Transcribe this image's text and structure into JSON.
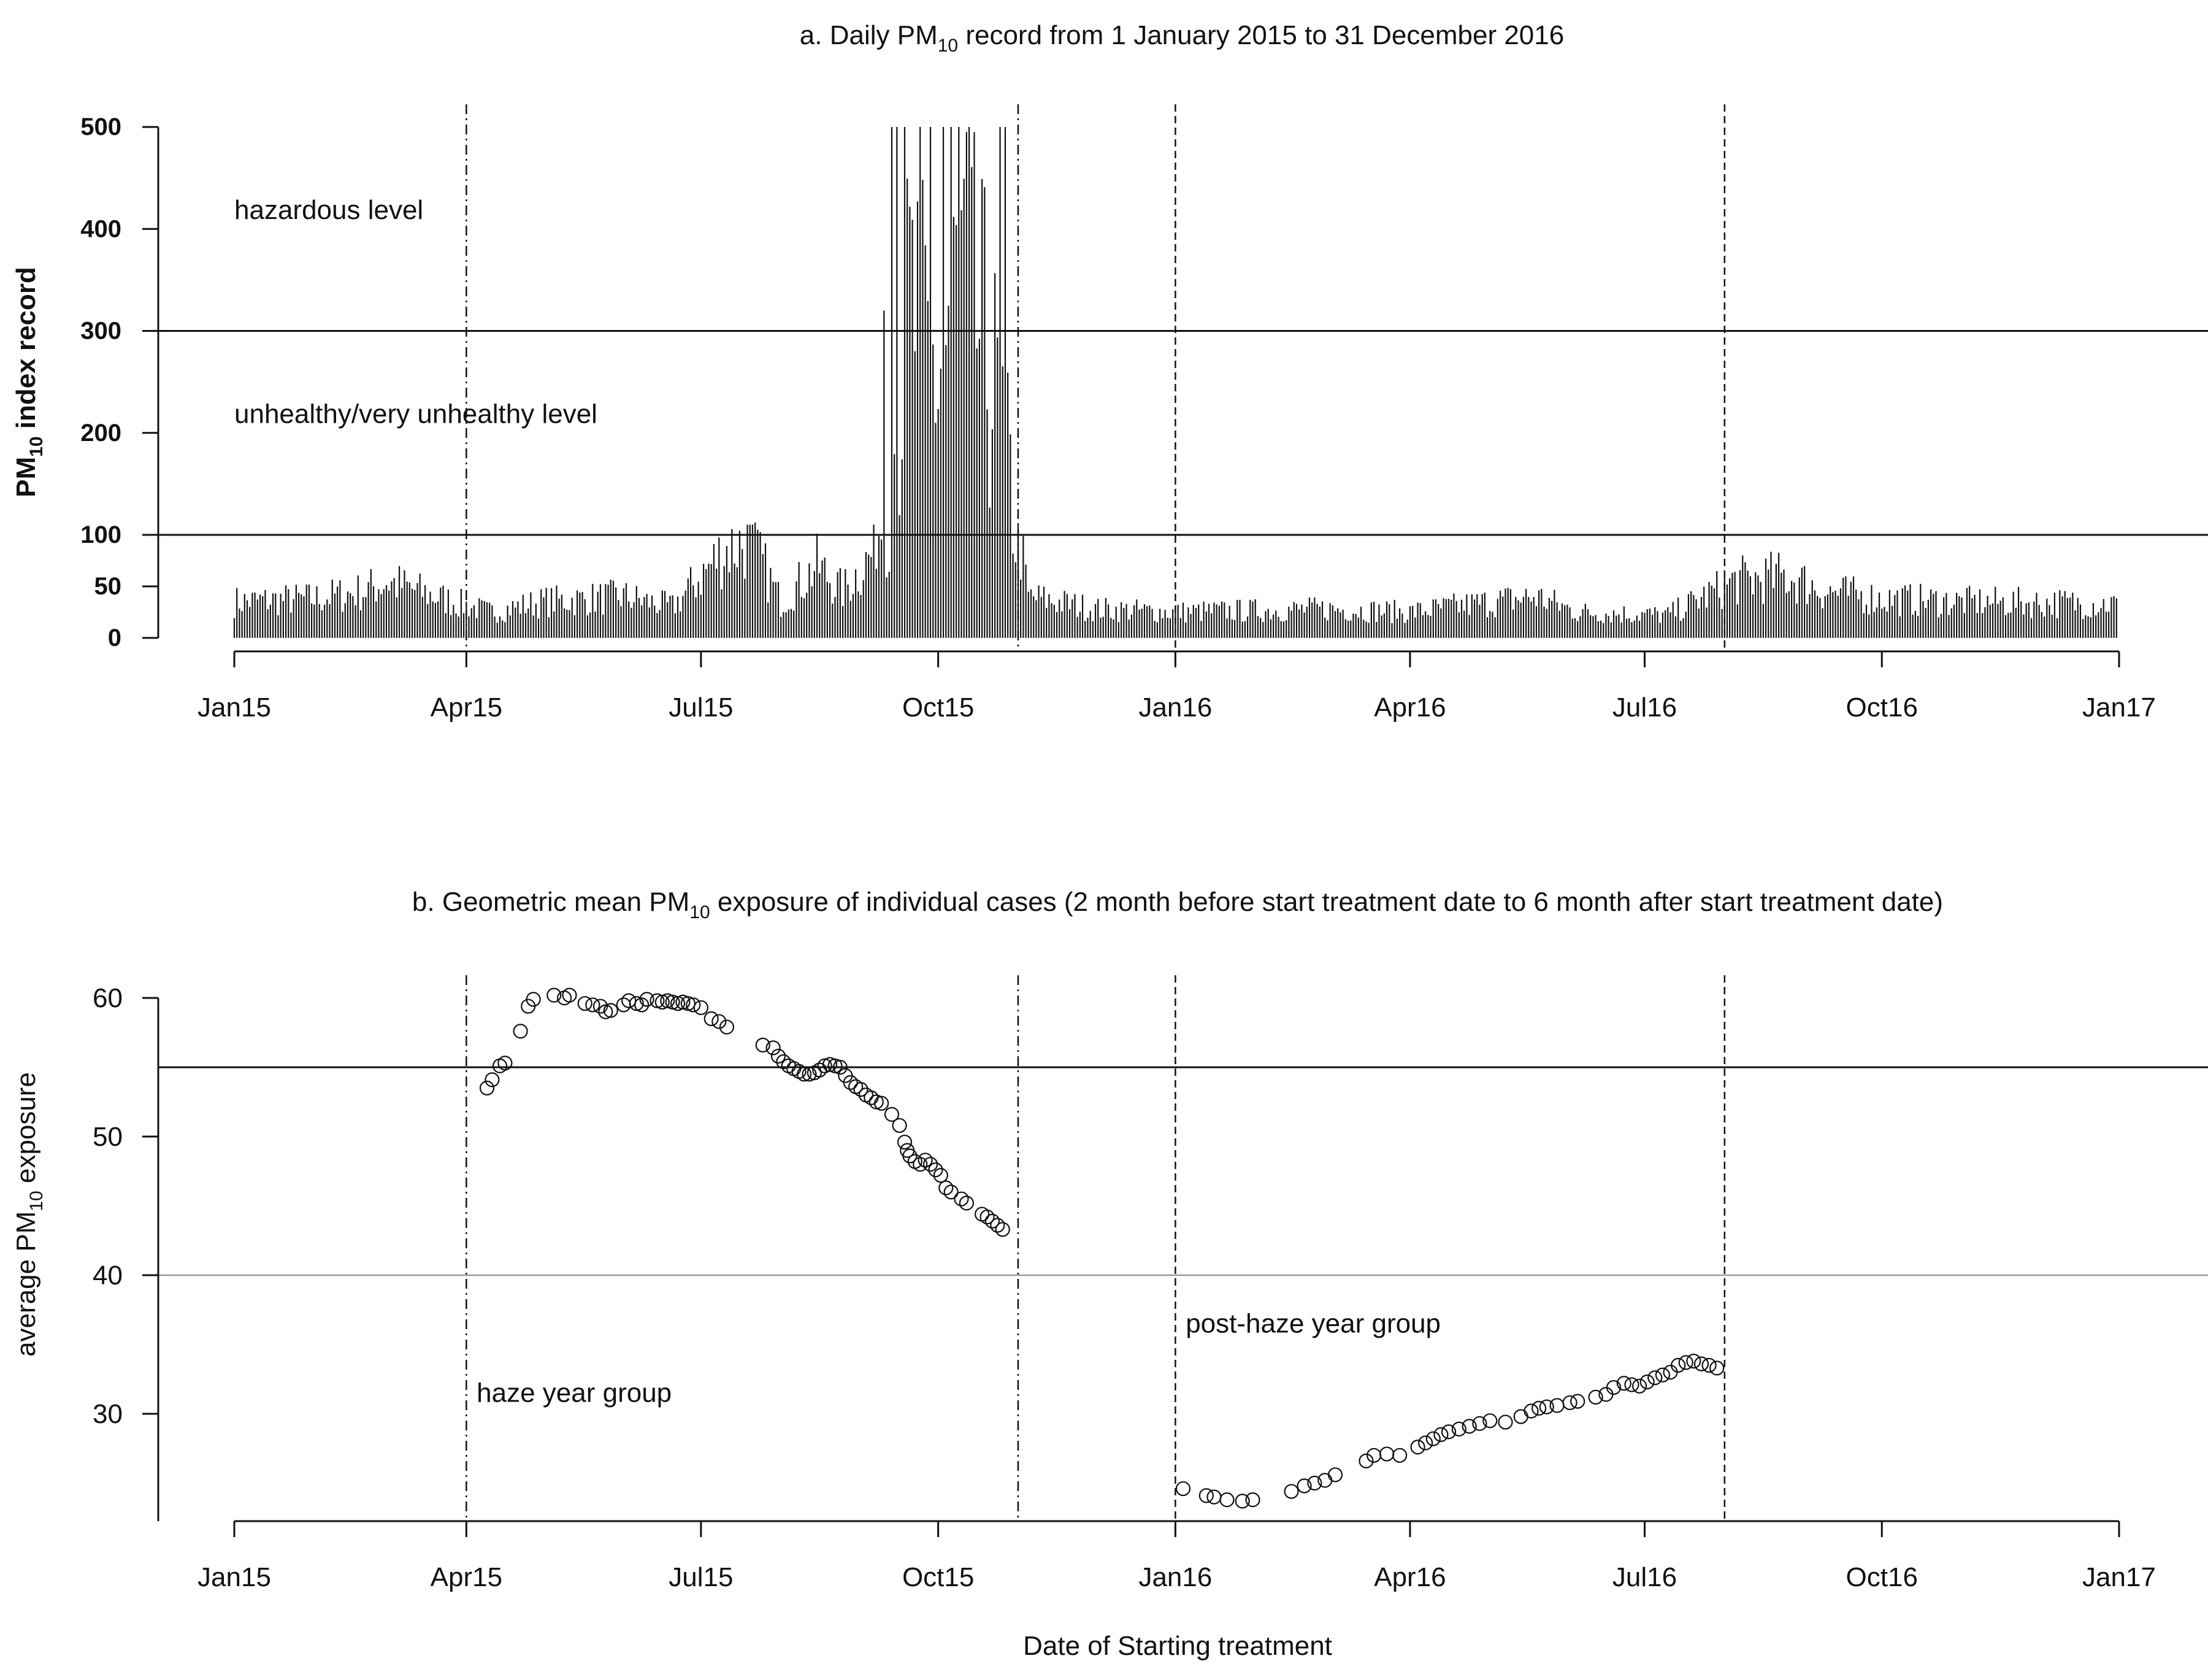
{
  "chart_data": [
    {
      "id": "a",
      "type": "bar",
      "title": "a. Daily PM",
      "title_sub": "10",
      "title_rest": " record from 1 January 2015 to 31 December 2016",
      "xlabel": "",
      "ylabel": "PM",
      "ylabel_sub": "10",
      "ylabel_rest": " index record",
      "x_range": [
        "2015-01-01",
        "2017-01-01"
      ],
      "x_ticks": [
        {
          "date": "2015-01-01",
          "label": "Jan15"
        },
        {
          "date": "2015-04-01",
          "label": "Apr15"
        },
        {
          "date": "2015-07-01",
          "label": "Jul15"
        },
        {
          "date": "2015-10-01",
          "label": "Oct15"
        },
        {
          "date": "2016-01-01",
          "label": "Jan16"
        },
        {
          "date": "2016-04-01",
          "label": "Apr16"
        },
        {
          "date": "2016-07-01",
          "label": "Jul16"
        },
        {
          "date": "2016-10-01",
          "label": "Oct16"
        },
        {
          "date": "2017-01-01",
          "label": "Jan17"
        }
      ],
      "y_ticks": [
        {
          "value": 0,
          "label": "0"
        },
        {
          "value": 50,
          "label": "50"
        },
        {
          "value": 100,
          "label": "100"
        },
        {
          "value": 200,
          "label": "200"
        },
        {
          "value": 300,
          "label": "300"
        },
        {
          "value": 400,
          "label": "400"
        },
        {
          "value": 500,
          "label": "500"
        }
      ],
      "ylim": [
        0,
        500
      ],
      "y_scale": "piecewise: 0-100 expanded, 100-500 linear",
      "reference_lines": [
        100,
        300
      ],
      "period_lines": [
        {
          "date": "2015-04-01",
          "style": "dashdot"
        },
        {
          "date": "2015-11-01",
          "style": "dashdot"
        },
        {
          "date": "2016-01-01",
          "style": "dashed"
        },
        {
          "date": "2016-08-01",
          "style": "dashed"
        }
      ],
      "annotations": [
        {
          "text": "hazardous level",
          "date": "2015-01-01",
          "value": 405
        },
        {
          "text": "unhealthy/very unhealthy level",
          "date": "2015-01-01",
          "value": 205
        }
      ],
      "series_note": "daily PM10 index, 731 values, Jan 2015 - Dec 2016",
      "anchors": [
        {
          "date": "2015-01-01",
          "value": 35
        },
        {
          "date": "2015-02-01",
          "value": 38
        },
        {
          "date": "2015-02-20",
          "value": 45
        },
        {
          "date": "2015-03-01",
          "value": 55
        },
        {
          "date": "2015-03-20",
          "value": 40
        },
        {
          "date": "2015-04-10",
          "value": 25
        },
        {
          "date": "2015-05-01",
          "value": 35
        },
        {
          "date": "2015-06-01",
          "value": 40
        },
        {
          "date": "2015-06-20",
          "value": 30
        },
        {
          "date": "2015-07-01",
          "value": 60
        },
        {
          "date": "2015-07-10",
          "value": 85
        },
        {
          "date": "2015-07-20",
          "value": 95
        },
        {
          "date": "2015-08-01",
          "value": 35
        },
        {
          "date": "2015-08-15",
          "value": 70
        },
        {
          "date": "2015-08-25",
          "value": 45
        },
        {
          "date": "2015-09-05",
          "value": 80
        },
        {
          "date": "2015-09-12",
          "value": 180
        },
        {
          "date": "2015-09-20",
          "value": 350
        },
        {
          "date": "2015-10-01",
          "value": 280
        },
        {
          "date": "2015-10-10",
          "value": 400
        },
        {
          "date": "2015-10-25",
          "value": 250
        },
        {
          "date": "2015-10-31",
          "value": 120
        },
        {
          "date": "2015-11-05",
          "value": 40
        },
        {
          "date": "2015-12-01",
          "value": 28
        },
        {
          "date": "2016-01-01",
          "value": 25
        },
        {
          "date": "2016-03-01",
          "value": 28
        },
        {
          "date": "2016-04-01",
          "value": 25
        },
        {
          "date": "2016-05-20",
          "value": 40
        },
        {
          "date": "2016-06-05",
          "value": 25
        },
        {
          "date": "2016-07-10",
          "value": 22
        },
        {
          "date": "2016-08-05",
          "value": 55
        },
        {
          "date": "2016-08-25",
          "value": 60
        },
        {
          "date": "2016-09-10",
          "value": 45
        },
        {
          "date": "2016-10-01",
          "value": 38
        },
        {
          "date": "2016-11-01",
          "value": 35
        },
        {
          "date": "2016-12-31",
          "value": 33
        }
      ],
      "spikes_500": [
        "2015-09-13",
        "2015-09-15",
        "2015-09-18",
        "2015-09-24",
        "2015-09-28",
        "2015-10-03",
        "2015-10-06",
        "2015-10-09",
        "2015-10-13",
        "2015-10-25",
        "2015-10-27"
      ],
      "highlights": [
        {
          "date": "2015-07-22",
          "value": 112
        },
        {
          "date": "2015-07-23",
          "value": 105
        },
        {
          "date": "2015-09-10",
          "value": 320
        }
      ]
    },
    {
      "id": "b",
      "type": "scatter",
      "title": "b. Geometric mean PM",
      "title_sub": "10",
      "title_rest": " exposure of individual cases (2 month before start treatment date to 6 month after start treatment date)",
      "xlabel": "Date of Starting treatment",
      "ylabel": "average PM",
      "ylabel_sub": "10",
      "ylabel_rest": " exposure",
      "x_range": [
        "2015-01-01",
        "2017-01-01"
      ],
      "x_ticks": [
        {
          "date": "2015-01-01",
          "label": "Jan15"
        },
        {
          "date": "2015-04-01",
          "label": "Apr15"
        },
        {
          "date": "2015-07-01",
          "label": "Jul15"
        },
        {
          "date": "2015-10-01",
          "label": "Oct15"
        },
        {
          "date": "2016-01-01",
          "label": "Jan16"
        },
        {
          "date": "2016-04-01",
          "label": "Apr16"
        },
        {
          "date": "2016-07-01",
          "label": "Jul16"
        },
        {
          "date": "2016-10-01",
          "label": "Oct16"
        },
        {
          "date": "2017-01-01",
          "label": "Jan17"
        }
      ],
      "y_ticks": [
        {
          "value": 30,
          "label": "30"
        },
        {
          "value": 40,
          "label": "40"
        },
        {
          "value": 50,
          "label": "50"
        },
        {
          "value": 60,
          "label": "60"
        }
      ],
      "ylim": [
        22.3,
        61.5
      ],
      "reference_lines": [
        {
          "value": 55,
          "color": "#111111"
        },
        {
          "value": 40,
          "color": "#999999"
        }
      ],
      "period_lines": [
        {
          "date": "2015-04-01",
          "style": "dashdot"
        },
        {
          "date": "2015-11-01",
          "style": "dashdot"
        },
        {
          "date": "2016-01-01",
          "style": "dashed"
        },
        {
          "date": "2016-08-01",
          "style": "dashed"
        }
      ],
      "annotations": [
        {
          "text": "haze year group",
          "date": "2015-04-05",
          "value": 30.5
        },
        {
          "text": "post-haze year group",
          "date": "2016-01-05",
          "value": 35.5
        }
      ],
      "series": [
        {
          "group": "haze year group",
          "points": [
            {
              "x": "2015-04-09",
              "y": 53.5
            },
            {
              "x": "2015-04-11",
              "y": 54.1
            },
            {
              "x": "2015-04-14",
              "y": 55.1
            },
            {
              "x": "2015-04-16",
              "y": 55.3
            },
            {
              "x": "2015-04-22",
              "y": 57.6
            },
            {
              "x": "2015-04-25",
              "y": 59.4
            },
            {
              "x": "2015-04-27",
              "y": 59.9
            },
            {
              "x": "2015-05-05",
              "y": 60.2
            },
            {
              "x": "2015-05-09",
              "y": 60.0
            },
            {
              "x": "2015-05-11",
              "y": 60.2
            },
            {
              "x": "2015-05-17",
              "y": 59.6
            },
            {
              "x": "2015-05-20",
              "y": 59.5
            },
            {
              "x": "2015-05-23",
              "y": 59.4
            },
            {
              "x": "2015-05-25",
              "y": 59.0
            },
            {
              "x": "2015-05-27",
              "y": 59.1
            },
            {
              "x": "2015-06-01",
              "y": 59.5
            },
            {
              "x": "2015-06-03",
              "y": 59.8
            },
            {
              "x": "2015-06-06",
              "y": 59.6
            },
            {
              "x": "2015-06-08",
              "y": 59.5
            },
            {
              "x": "2015-06-10",
              "y": 59.9
            },
            {
              "x": "2015-06-14",
              "y": 59.8
            },
            {
              "x": "2015-06-16",
              "y": 59.7
            },
            {
              "x": "2015-06-18",
              "y": 59.8
            },
            {
              "x": "2015-06-20",
              "y": 59.7
            },
            {
              "x": "2015-06-22",
              "y": 59.6
            },
            {
              "x": "2015-06-24",
              "y": 59.7
            },
            {
              "x": "2015-06-26",
              "y": 59.6
            },
            {
              "x": "2015-06-28",
              "y": 59.5
            },
            {
              "x": "2015-07-01",
              "y": 59.3
            },
            {
              "x": "2015-07-05",
              "y": 58.5
            },
            {
              "x": "2015-07-08",
              "y": 58.3
            },
            {
              "x": "2015-07-11",
              "y": 57.9
            },
            {
              "x": "2015-07-25",
              "y": 56.6
            },
            {
              "x": "2015-07-29",
              "y": 56.4
            },
            {
              "x": "2015-07-31",
              "y": 55.8
            },
            {
              "x": "2015-08-02",
              "y": 55.4
            },
            {
              "x": "2015-08-04",
              "y": 55.1
            },
            {
              "x": "2015-08-06",
              "y": 54.9
            },
            {
              "x": "2015-08-08",
              "y": 54.7
            },
            {
              "x": "2015-08-10",
              "y": 54.5
            },
            {
              "x": "2015-08-12",
              "y": 54.5
            },
            {
              "x": "2015-08-14",
              "y": 54.6
            },
            {
              "x": "2015-08-16",
              "y": 54.8
            },
            {
              "x": "2015-08-18",
              "y": 55.1
            },
            {
              "x": "2015-08-20",
              "y": 55.2
            },
            {
              "x": "2015-08-22",
              "y": 55.1
            },
            {
              "x": "2015-08-24",
              "y": 55.0
            },
            {
              "x": "2015-08-26",
              "y": 54.4
            },
            {
              "x": "2015-08-28",
              "y": 53.9
            },
            {
              "x": "2015-08-30",
              "y": 53.6
            },
            {
              "x": "2015-09-01",
              "y": 53.4
            },
            {
              "x": "2015-09-03",
              "y": 53.0
            },
            {
              "x": "2015-09-05",
              "y": 52.8
            },
            {
              "x": "2015-09-07",
              "y": 52.5
            },
            {
              "x": "2015-09-09",
              "y": 52.4
            },
            {
              "x": "2015-09-13",
              "y": 51.6
            },
            {
              "x": "2015-09-16",
              "y": 50.8
            },
            {
              "x": "2015-09-18",
              "y": 49.6
            },
            {
              "x": "2015-09-19",
              "y": 49.0
            },
            {
              "x": "2015-09-20",
              "y": 48.6
            },
            {
              "x": "2015-09-22",
              "y": 48.2
            },
            {
              "x": "2015-09-24",
              "y": 48.0
            },
            {
              "x": "2015-09-26",
              "y": 48.3
            },
            {
              "x": "2015-09-28",
              "y": 48.0
            },
            {
              "x": "2015-09-30",
              "y": 47.6
            },
            {
              "x": "2015-10-02",
              "y": 47.2
            },
            {
              "x": "2015-10-04",
              "y": 46.3
            },
            {
              "x": "2015-10-06",
              "y": 46.0
            },
            {
              "x": "2015-10-10",
              "y": 45.5
            },
            {
              "x": "2015-10-12",
              "y": 45.2
            },
            {
              "x": "2015-10-18",
              "y": 44.4
            },
            {
              "x": "2015-10-20",
              "y": 44.2
            },
            {
              "x": "2015-10-22",
              "y": 43.9
            },
            {
              "x": "2015-10-24",
              "y": 43.6
            },
            {
              "x": "2015-10-26",
              "y": 43.3
            }
          ]
        },
        {
          "group": "post-haze year group",
          "points": [
            {
              "x": "2016-01-04",
              "y": 24.6
            },
            {
              "x": "2016-01-13",
              "y": 24.1
            },
            {
              "x": "2016-01-16",
              "y": 24.0
            },
            {
              "x": "2016-01-21",
              "y": 23.8
            },
            {
              "x": "2016-01-27",
              "y": 23.7
            },
            {
              "x": "2016-01-31",
              "y": 23.8
            },
            {
              "x": "2016-02-15",
              "y": 24.4
            },
            {
              "x": "2016-02-20",
              "y": 24.8
            },
            {
              "x": "2016-02-24",
              "y": 25.0
            },
            {
              "x": "2016-02-28",
              "y": 25.2
            },
            {
              "x": "2016-03-03",
              "y": 25.6
            },
            {
              "x": "2016-03-15",
              "y": 26.6
            },
            {
              "x": "2016-03-18",
              "y": 27.0
            },
            {
              "x": "2016-03-23",
              "y": 27.1
            },
            {
              "x": "2016-03-28",
              "y": 27.0
            },
            {
              "x": "2016-04-04",
              "y": 27.6
            },
            {
              "x": "2016-04-07",
              "y": 27.9
            },
            {
              "x": "2016-04-10",
              "y": 28.2
            },
            {
              "x": "2016-04-13",
              "y": 28.5
            },
            {
              "x": "2016-04-16",
              "y": 28.7
            },
            {
              "x": "2016-04-20",
              "y": 28.9
            },
            {
              "x": "2016-04-24",
              "y": 29.1
            },
            {
              "x": "2016-04-28",
              "y": 29.3
            },
            {
              "x": "2016-05-02",
              "y": 29.5
            },
            {
              "x": "2016-05-08",
              "y": 29.4
            },
            {
              "x": "2016-05-14",
              "y": 29.8
            },
            {
              "x": "2016-05-18",
              "y": 30.2
            },
            {
              "x": "2016-05-21",
              "y": 30.4
            },
            {
              "x": "2016-05-24",
              "y": 30.5
            },
            {
              "x": "2016-05-28",
              "y": 30.6
            },
            {
              "x": "2016-06-02",
              "y": 30.8
            },
            {
              "x": "2016-06-05",
              "y": 30.9
            },
            {
              "x": "2016-06-12",
              "y": 31.2
            },
            {
              "x": "2016-06-16",
              "y": 31.4
            },
            {
              "x": "2016-06-19",
              "y": 31.9
            },
            {
              "x": "2016-06-23",
              "y": 32.2
            },
            {
              "x": "2016-06-26",
              "y": 32.1
            },
            {
              "x": "2016-06-29",
              "y": 32.0
            },
            {
              "x": "2016-07-02",
              "y": 32.3
            },
            {
              "x": "2016-07-05",
              "y": 32.6
            },
            {
              "x": "2016-07-08",
              "y": 32.8
            },
            {
              "x": "2016-07-11",
              "y": 33.0
            },
            {
              "x": "2016-07-14",
              "y": 33.5
            },
            {
              "x": "2016-07-17",
              "y": 33.7
            },
            {
              "x": "2016-07-20",
              "y": 33.8
            },
            {
              "x": "2016-07-23",
              "y": 33.6
            },
            {
              "x": "2016-07-26",
              "y": 33.5
            },
            {
              "x": "2016-07-29",
              "y": 33.3
            }
          ]
        }
      ]
    }
  ]
}
